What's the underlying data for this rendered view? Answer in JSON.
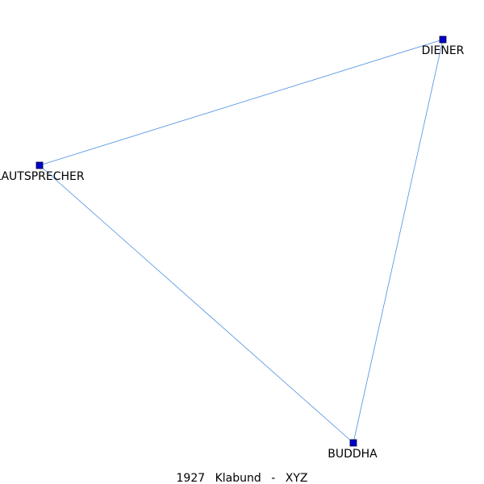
{
  "caption": {
    "year": "1927",
    "author": "Klabund",
    "separator": "-",
    "work": "XYZ"
  },
  "nodes": [
    {
      "id": "diener",
      "label": "DIENER"
    },
    {
      "id": "lautsprecher",
      "label": "LAUTSPRECHER"
    },
    {
      "id": "buddha",
      "label": "BUDDHA"
    }
  ],
  "edges": [
    {
      "source": "lautsprecher",
      "target": "diener"
    },
    {
      "source": "diener",
      "target": "buddha"
    },
    {
      "source": "lautsprecher",
      "target": "buddha"
    }
  ],
  "colors": {
    "edge": "#4a90e2",
    "node_fill": "#0000cc",
    "label": "#000000"
  }
}
